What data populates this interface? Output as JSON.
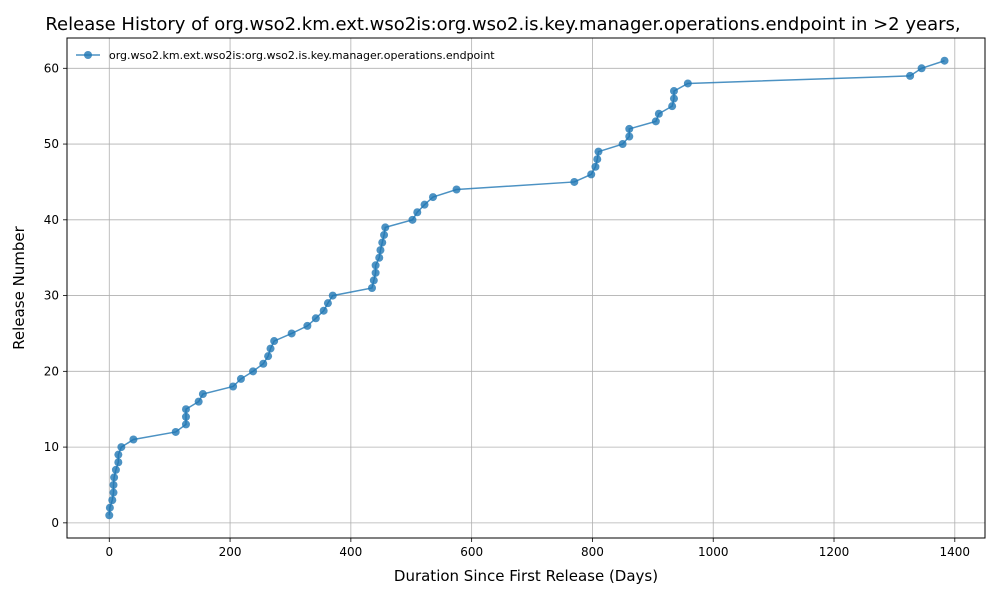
{
  "chart_data": {
    "type": "line",
    "title": "Release History of org.wso2.km.ext.wso2is:org.wso2.is.key.manager.operations.endpoint in >2 years,",
    "xlabel": "Duration Since First Release (Days)",
    "ylabel": "Release Number",
    "xlim": [
      -70,
      1450
    ],
    "ylim": [
      -2,
      64
    ],
    "xticks": [
      0,
      200,
      400,
      600,
      800,
      1000,
      1200,
      1400
    ],
    "yticks": [
      0,
      10,
      20,
      30,
      40,
      50,
      60
    ],
    "grid": true,
    "legend_position": "top-left",
    "series": [
      {
        "name": "org.wso2.km.ext.wso2is:org.wso2.is.key.manager.operations.endpoint",
        "color": "#1f77b4",
        "marker": "circle",
        "points": [
          [
            0,
            1
          ],
          [
            1,
            2
          ],
          [
            5,
            3
          ],
          [
            7,
            4
          ],
          [
            7,
            5
          ],
          [
            8,
            6
          ],
          [
            11,
            7
          ],
          [
            15,
            8
          ],
          [
            15,
            9
          ],
          [
            20,
            10
          ],
          [
            40,
            11
          ],
          [
            110,
            12
          ],
          [
            127,
            13
          ],
          [
            127,
            14
          ],
          [
            127,
            15
          ],
          [
            148,
            16
          ],
          [
            155,
            17
          ],
          [
            205,
            18
          ],
          [
            218,
            19
          ],
          [
            238,
            20
          ],
          [
            255,
            21
          ],
          [
            263,
            22
          ],
          [
            267,
            23
          ],
          [
            273,
            24
          ],
          [
            302,
            25
          ],
          [
            328,
            26
          ],
          [
            342,
            27
          ],
          [
            355,
            28
          ],
          [
            362,
            29
          ],
          [
            370,
            30
          ],
          [
            435,
            31
          ],
          [
            438,
            32
          ],
          [
            441,
            33
          ],
          [
            441,
            34
          ],
          [
            447,
            35
          ],
          [
            449,
            36
          ],
          [
            452,
            37
          ],
          [
            455,
            38
          ],
          [
            457,
            39
          ],
          [
            502,
            40
          ],
          [
            510,
            41
          ],
          [
            522,
            42
          ],
          [
            536,
            43
          ],
          [
            575,
            44
          ],
          [
            770,
            45
          ],
          [
            798,
            46
          ],
          [
            805,
            47
          ],
          [
            808,
            48
          ],
          [
            810,
            49
          ],
          [
            850,
            50
          ],
          [
            861,
            51
          ],
          [
            861,
            52
          ],
          [
            905,
            53
          ],
          [
            910,
            54
          ],
          [
            932,
            55
          ],
          [
            935,
            56
          ],
          [
            935,
            57
          ],
          [
            958,
            58
          ],
          [
            1326,
            59
          ],
          [
            1345,
            60
          ],
          [
            1383,
            61
          ]
        ]
      }
    ]
  }
}
